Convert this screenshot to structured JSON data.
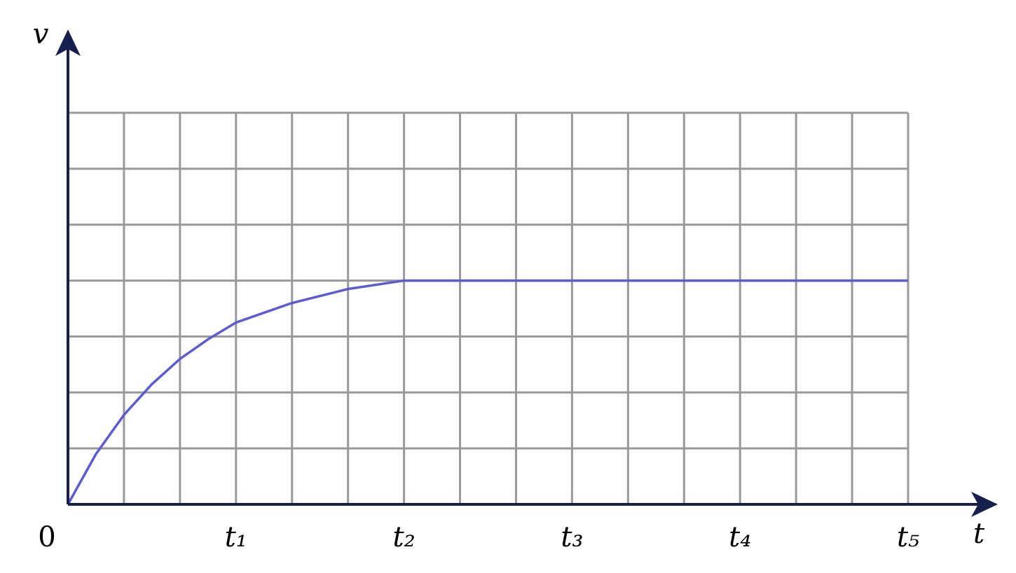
{
  "chart_data": {
    "type": "line",
    "x_label": "t",
    "y_label": "v",
    "x": [
      0,
      0.5,
      1,
      1.5,
      2,
      2.5,
      3,
      4,
      5,
      6,
      15
    ],
    "series": [
      {
        "color": "#5b5bd6",
        "values": [
          0,
          0.9,
          1.6,
          2.15,
          2.6,
          2.95,
          3.25,
          3.6,
          3.85,
          4,
          4
        ]
      }
    ],
    "xlim": [
      0,
      15
    ],
    "ylim": [
      0,
      7
    ],
    "xticks": [
      0,
      {
        "value": 3,
        "label": "t₁"
      },
      {
        "value": 6,
        "label": "t₂"
      },
      {
        "value": 9,
        "label": "t₃"
      },
      {
        "value": 12,
        "label": "t₄"
      },
      {
        "value": 15,
        "label": "t₅"
      }
    ],
    "xgrid": [
      0,
      1,
      2,
      3,
      4,
      5,
      6,
      7,
      8,
      9,
      10,
      11,
      12,
      13,
      14,
      15
    ],
    "ygrid": [
      0,
      1,
      2,
      3,
      4,
      5,
      6,
      7
    ],
    "grid": true,
    "grid_color": "#999999",
    "axis_color": "#16204f"
  }
}
